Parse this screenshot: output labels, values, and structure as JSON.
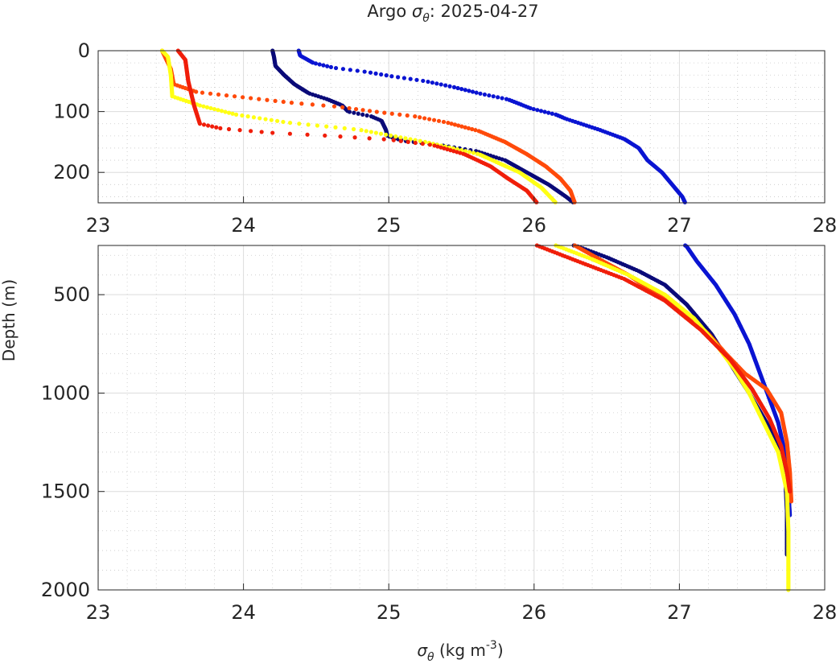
{
  "chart_data": {
    "type": "scatter",
    "title_prefix": "Argo ",
    "title_symbol": "σ",
    "title_subscript": "θ",
    "title_suffix": ": 2025-04-27",
    "xlabel_symbol": "σ",
    "xlabel_subscript": "θ",
    "xlabel_unit": " (kg m",
    "xlabel_superscript": "-3",
    "xlabel_close": ")",
    "ylabel": "Depth (m)",
    "xlim": [
      23,
      28
    ],
    "x_ticks": [
      "23",
      "24",
      "25",
      "26",
      "27",
      "28"
    ],
    "panels": [
      {
        "name": "upper",
        "ylim": [
          0,
          250
        ],
        "y_ticks": [
          "0",
          "100",
          "200"
        ],
        "y_tick_values": [
          0,
          100,
          200
        ],
        "y_minor_step": 20
      },
      {
        "name": "lower",
        "ylim": [
          250,
          2000
        ],
        "y_ticks": [
          "500",
          "1000",
          "1500",
          "2000"
        ],
        "y_tick_values": [
          500,
          1000,
          1500,
          2000
        ],
        "y_minor_step": 100
      }
    ],
    "series": [
      {
        "name": "profile-blue",
        "color": "#0a14d2",
        "bottom_depth": 1620,
        "points": [
          [
            24.38,
            0
          ],
          [
            24.39,
            8
          ],
          [
            24.48,
            20
          ],
          [
            24.62,
            28
          ],
          [
            24.85,
            35
          ],
          [
            25.02,
            42
          ],
          [
            25.25,
            50
          ],
          [
            25.45,
            60
          ],
          [
            25.62,
            70
          ],
          [
            25.82,
            80
          ],
          [
            25.98,
            95
          ],
          [
            26.15,
            105
          ],
          [
            26.22,
            112
          ],
          [
            26.45,
            130
          ],
          [
            26.62,
            145
          ],
          [
            26.72,
            160
          ],
          [
            26.78,
            180
          ],
          [
            26.88,
            200
          ],
          [
            26.95,
            220
          ],
          [
            27.02,
            240
          ],
          [
            27.05,
            255
          ],
          [
            27.12,
            330
          ],
          [
            27.25,
            450
          ],
          [
            27.38,
            600
          ],
          [
            27.48,
            750
          ],
          [
            27.58,
            950
          ],
          [
            27.68,
            1150
          ],
          [
            27.74,
            1350
          ],
          [
            27.75,
            1500
          ],
          [
            27.76,
            1620
          ]
        ]
      },
      {
        "name": "profile-navy",
        "color": "#0a0a78",
        "bottom_depth": 1820,
        "points": [
          [
            24.2,
            0
          ],
          [
            24.21,
            10
          ],
          [
            24.22,
            25
          ],
          [
            24.28,
            40
          ],
          [
            24.35,
            55
          ],
          [
            24.45,
            70
          ],
          [
            24.58,
            80
          ],
          [
            24.68,
            90
          ],
          [
            24.72,
            100
          ],
          [
            24.88,
            108
          ],
          [
            24.95,
            115
          ],
          [
            24.98,
            130
          ],
          [
            24.99,
            140
          ],
          [
            25.1,
            148
          ],
          [
            25.35,
            155
          ],
          [
            25.6,
            165
          ],
          [
            25.8,
            180
          ],
          [
            25.95,
            200
          ],
          [
            26.1,
            220
          ],
          [
            26.22,
            240
          ],
          [
            26.3,
            255
          ],
          [
            26.5,
            310
          ],
          [
            26.72,
            380
          ],
          [
            26.9,
            450
          ],
          [
            27.05,
            550
          ],
          [
            27.22,
            700
          ],
          [
            27.35,
            850
          ],
          [
            27.48,
            1000
          ],
          [
            27.6,
            1150
          ],
          [
            27.7,
            1300
          ],
          [
            27.73,
            1450
          ],
          [
            27.74,
            1600
          ],
          [
            27.74,
            1820
          ]
        ]
      },
      {
        "name": "profile-orange",
        "color": "#ff4a0a",
        "bottom_depth": 1550,
        "points": [
          [
            23.44,
            0
          ],
          [
            23.46,
            10
          ],
          [
            23.5,
            30
          ],
          [
            23.52,
            55
          ],
          [
            23.68,
            68
          ],
          [
            24.05,
            78
          ],
          [
            24.35,
            86
          ],
          [
            24.65,
            92
          ],
          [
            24.9,
            100
          ],
          [
            25.18,
            108
          ],
          [
            25.4,
            118
          ],
          [
            25.62,
            132
          ],
          [
            25.8,
            150
          ],
          [
            25.95,
            170
          ],
          [
            26.08,
            190
          ],
          [
            26.18,
            210
          ],
          [
            26.25,
            230
          ],
          [
            26.28,
            250
          ],
          [
            26.45,
            320
          ],
          [
            26.65,
            400
          ],
          [
            26.85,
            500
          ],
          [
            27.05,
            600
          ],
          [
            27.2,
            700
          ],
          [
            27.32,
            800
          ],
          [
            27.45,
            900
          ],
          [
            27.6,
            980
          ],
          [
            27.7,
            1100
          ],
          [
            27.74,
            1250
          ],
          [
            27.76,
            1400
          ],
          [
            27.77,
            1550
          ]
        ]
      },
      {
        "name": "profile-yellow",
        "color": "#ffff14",
        "bottom_depth": 2000,
        "points": [
          [
            23.44,
            0
          ],
          [
            23.48,
            10
          ],
          [
            23.5,
            40
          ],
          [
            23.51,
            75
          ],
          [
            23.7,
            90
          ],
          [
            23.95,
            105
          ],
          [
            24.3,
            118
          ],
          [
            24.8,
            130
          ],
          [
            25.25,
            150
          ],
          [
            25.62,
            170
          ],
          [
            25.9,
            200
          ],
          [
            26.05,
            225
          ],
          [
            26.15,
            250
          ],
          [
            26.4,
            320
          ],
          [
            26.65,
            400
          ],
          [
            26.9,
            500
          ],
          [
            27.1,
            620
          ],
          [
            27.25,
            750
          ],
          [
            27.38,
            880
          ],
          [
            27.48,
            1000
          ],
          [
            27.58,
            1150
          ],
          [
            27.68,
            1300
          ],
          [
            27.74,
            1500
          ],
          [
            27.75,
            1700
          ],
          [
            27.75,
            2000
          ]
        ]
      },
      {
        "name": "profile-red",
        "color": "#f01e0a",
        "bottom_depth": 1500,
        "points": [
          [
            23.55,
            0
          ],
          [
            23.6,
            15
          ],
          [
            23.62,
            50
          ],
          [
            23.66,
            90
          ],
          [
            23.7,
            120
          ],
          [
            23.85,
            128
          ],
          [
            24.2,
            135
          ],
          [
            24.6,
            140
          ],
          [
            25,
            146
          ],
          [
            25.3,
            155
          ],
          [
            25.52,
            170
          ],
          [
            25.7,
            190
          ],
          [
            25.82,
            210
          ],
          [
            25.95,
            230
          ],
          [
            26.02,
            250
          ],
          [
            26.3,
            330
          ],
          [
            26.62,
            420
          ],
          [
            26.9,
            530
          ],
          [
            27.15,
            680
          ],
          [
            27.35,
            830
          ],
          [
            27.5,
            980
          ],
          [
            27.62,
            1130
          ],
          [
            27.7,
            1270
          ],
          [
            27.74,
            1400
          ],
          [
            27.76,
            1500
          ]
        ]
      }
    ]
  }
}
